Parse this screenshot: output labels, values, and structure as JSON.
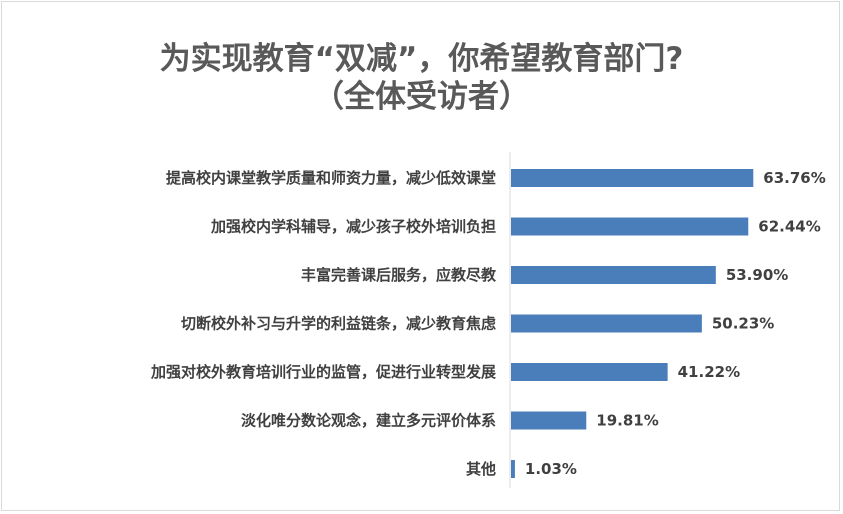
{
  "chart_data": {
    "type": "bar",
    "orientation": "horizontal",
    "title": "为实现教育“双减”，你希望教育部门?",
    "subtitle": "（全体受访者）",
    "categories": [
      "提高校内课堂教学质量和师资力量，减少低效课堂",
      "加强校内学科辅导，减少孩子校外培训负担",
      "丰富完善课后服务，应教尽教",
      "切断校外补习与升学的利益链条，减少教育焦虑",
      "加强对校外教育培训行业的监管，促进行业转型发展",
      "淡化唯分数论观念，建立多元评价体系",
      "其他"
    ],
    "values": [
      63.76,
      62.44,
      53.9,
      50.23,
      41.22,
      19.81,
      1.03
    ],
    "value_labels": [
      "63.76%",
      "62.44%",
      "53.90%",
      "50.23%",
      "41.22%",
      "19.81%",
      "1.03%"
    ],
    "xlim": [
      0,
      100
    ],
    "grid": false,
    "legend": "none",
    "colors": {
      "bar": "#4a7ebb",
      "title": "#595959",
      "text": "#404040",
      "axis": "#d9d9d9"
    }
  }
}
